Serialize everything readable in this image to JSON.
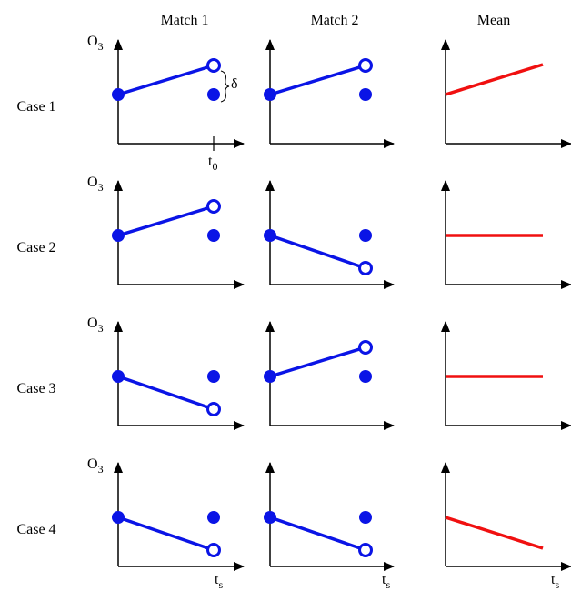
{
  "column_headers": [
    "Match 1",
    "Match 2",
    "Mean"
  ],
  "rows": [
    {
      "label": "Case 1",
      "y_axis": {
        "base": "O",
        "sub": "3"
      }
    },
    {
      "label": "Case 2",
      "y_axis": {
        "base": "O",
        "sub": "3"
      }
    },
    {
      "label": "Case 3",
      "y_axis": {
        "base": "O",
        "sub": "3"
      }
    },
    {
      "label": "Case 4",
      "y_axis": {
        "base": "O",
        "sub": "3"
      }
    }
  ],
  "delta": "δ",
  "t0": {
    "base": "t",
    "sub": "0"
  },
  "time_axis": [
    {
      "base": "t",
      "sub": "s"
    },
    {
      "base": "t",
      "sub": "s"
    },
    {
      "base": "t",
      "sub": "s"
    }
  ]
}
